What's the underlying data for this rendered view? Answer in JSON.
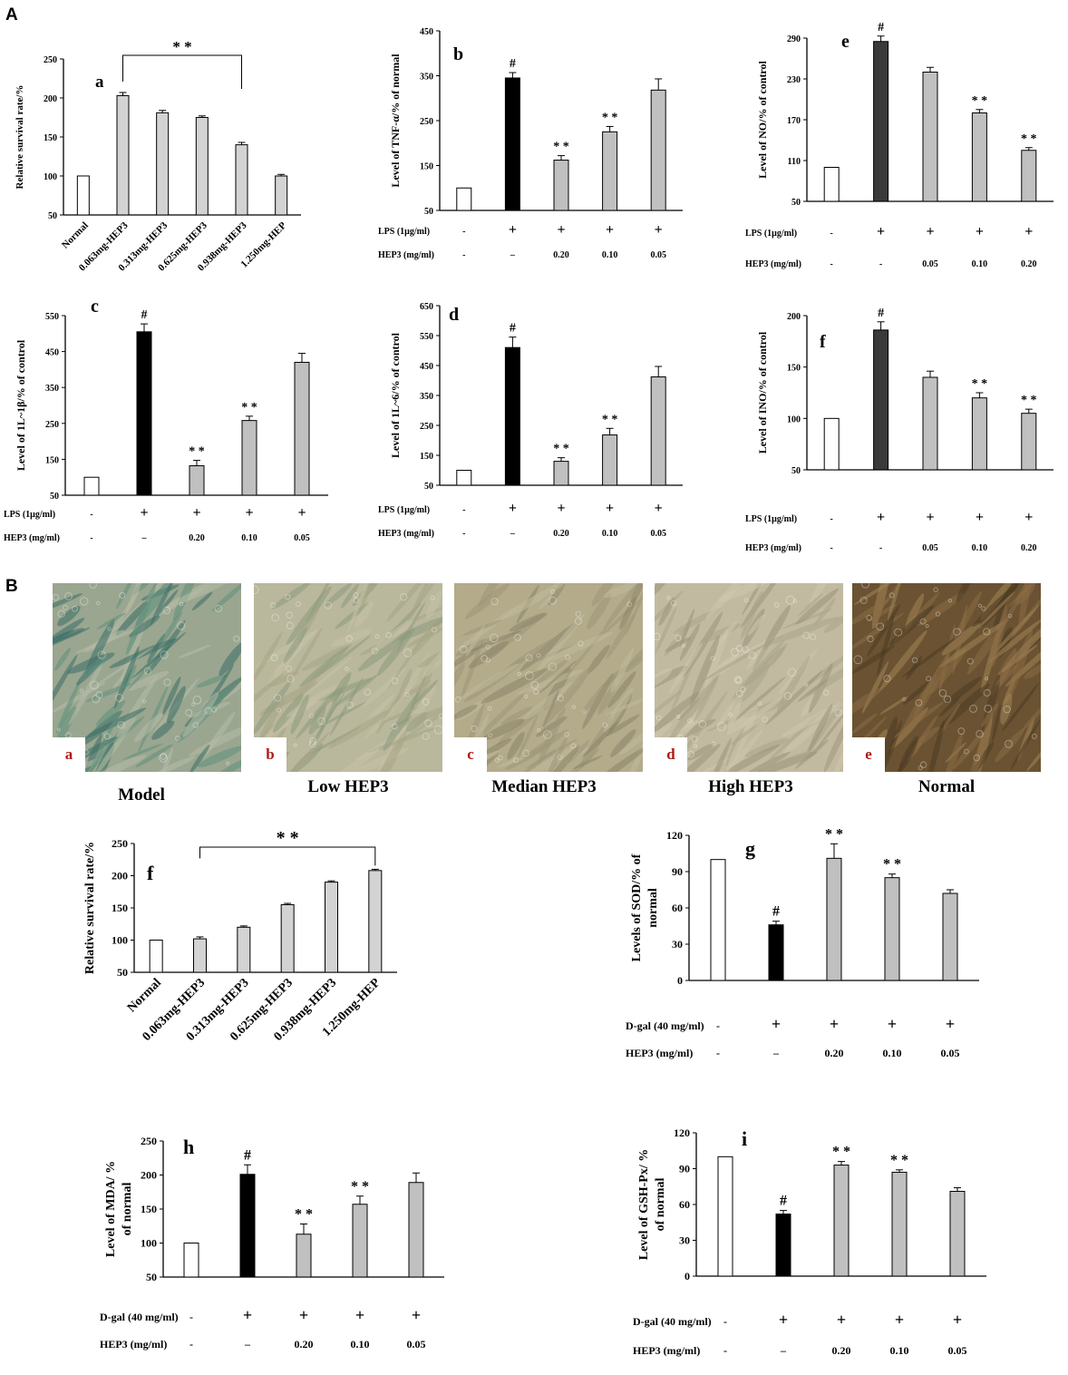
{
  "figure": {
    "section_a": "A",
    "section_b": "B"
  },
  "photos": [
    {
      "letter": "a",
      "caption": "Model",
      "colors": [
        "#9aa690",
        "#5f8f7c",
        "#3b6d66",
        "#b7bba6"
      ]
    },
    {
      "letter": "b",
      "caption": "Low  HEP3",
      "colors": [
        "#b9b79c",
        "#a7a585",
        "#8d9a7d",
        "#c6c2a8"
      ]
    },
    {
      "letter": "c",
      "caption": "Median  HEP3",
      "colors": [
        "#b3ab8a",
        "#9d9578",
        "#c0b99c",
        "#8a8468"
      ]
    },
    {
      "letter": "d",
      "caption": "High HEP3",
      "colors": [
        "#c2baa0",
        "#aaa48a",
        "#cfc7ad",
        "#9a937a"
      ]
    },
    {
      "letter": "e",
      "caption": "Normal",
      "colors": [
        "#6a5232",
        "#8b6c45",
        "#4b3a22",
        "#a28456"
      ]
    }
  ],
  "chart_data": [
    {
      "id": "a",
      "type": "bar",
      "panel_letter": "a",
      "ylabel": "Relative survival rate/%",
      "ylim": [
        50,
        250
      ],
      "yticks": [
        50,
        100,
        150,
        200,
        250
      ],
      "categories": [
        "Normal",
        "0.063mg-HEP3",
        "0.313mg-HEP3",
        "0.625mg-HEP3",
        "0.938mg-HEP3",
        "1.250mg-HEP"
      ],
      "values": [
        100,
        203,
        181,
        175,
        140,
        100
      ],
      "errors": [
        0,
        4,
        3,
        2,
        3,
        2
      ],
      "bar_colors": [
        "#ffffff",
        "#d3d3d3",
        "#d3d3d3",
        "#d3d3d3",
        "#d3d3d3",
        "#d3d3d3"
      ],
      "marks": [
        "",
        "",
        "",
        "",
        "",
        ""
      ],
      "bracket": {
        "from": 1,
        "to": 4,
        "label": "* *"
      },
      "rows": []
    },
    {
      "id": "b",
      "type": "bar",
      "panel_letter": "b",
      "ylabel": "Level of TNF-α/% of normal",
      "ylim": [
        50,
        450
      ],
      "yticks": [
        50,
        150,
        250,
        350,
        450
      ],
      "categories": [
        "",
        "",
        "",
        "",
        ""
      ],
      "values": [
        100,
        345,
        162,
        225,
        318
      ],
      "errors": [
        0,
        12,
        10,
        12,
        25
      ],
      "bar_colors": [
        "#ffffff",
        "#000000",
        "#c0c0c0",
        "#c0c0c0",
        "#c0c0c0"
      ],
      "marks": [
        "",
        "#",
        "* *",
        "* *",
        ""
      ],
      "rows": [
        {
          "label": "LPS (1μg/ml)",
          "values": [
            "-",
            "+",
            "+",
            "+",
            "+"
          ]
        },
        {
          "label": "HEP3 (mg/ml)",
          "values": [
            "-",
            "–",
            "0.20",
            "0.10",
            "0.05"
          ]
        }
      ]
    },
    {
      "id": "e",
      "type": "bar",
      "panel_letter": "e",
      "ylabel": "Level of NO/% of control",
      "ylim": [
        50,
        290
      ],
      "yticks": [
        50,
        110,
        170,
        230,
        290
      ],
      "categories": [
        "",
        "",
        "",
        "",
        ""
      ],
      "values": [
        100,
        285,
        240,
        180,
        125
      ],
      "errors": [
        0,
        8,
        7,
        5,
        4
      ],
      "bar_colors": [
        "#ffffff",
        "#3a3a3a",
        "#c0c0c0",
        "#c0c0c0",
        "#c0c0c0"
      ],
      "marks": [
        "",
        "#",
        "",
        "* *",
        "* *"
      ],
      "rows": [
        {
          "label": "LPS (1μg/ml)",
          "values": [
            "-",
            "+",
            "+",
            "+",
            "+"
          ]
        },
        {
          "label": "HEP3 (mg/ml)",
          "values": [
            "-",
            "-",
            "0.05",
            "0.10",
            "0.20"
          ]
        }
      ]
    },
    {
      "id": "c",
      "type": "bar",
      "panel_letter": "c",
      "ylabel": "Level of 1L~1β/% of control",
      "ylim": [
        50,
        550
      ],
      "yticks": [
        50,
        150,
        250,
        350,
        450,
        550
      ],
      "categories": [
        "",
        "",
        "",
        "",
        ""
      ],
      "values": [
        100,
        505,
        132,
        258,
        420
      ],
      "errors": [
        0,
        22,
        15,
        12,
        25
      ],
      "bar_colors": [
        "#ffffff",
        "#000000",
        "#c0c0c0",
        "#c0c0c0",
        "#c0c0c0"
      ],
      "marks": [
        "",
        "#",
        "* *",
        "* *",
        ""
      ],
      "rows": [
        {
          "label": "LPS (1μg/ml)",
          "values": [
            "-",
            "+",
            "+",
            "+",
            "+"
          ]
        },
        {
          "label": "HEP3 (mg/ml)",
          "values": [
            "-",
            "–",
            "0.20",
            "0.10",
            "0.05"
          ]
        }
      ]
    },
    {
      "id": "d",
      "type": "bar",
      "panel_letter": "d",
      "ylabel": "Level of 1L~6/% of control",
      "ylim": [
        50,
        650
      ],
      "yticks": [
        50,
        150,
        250,
        350,
        450,
        550,
        650
      ],
      "categories": [
        "",
        "",
        "",
        "",
        ""
      ],
      "values": [
        100,
        510,
        130,
        218,
        412
      ],
      "errors": [
        0,
        35,
        12,
        22,
        35
      ],
      "bar_colors": [
        "#ffffff",
        "#000000",
        "#c0c0c0",
        "#c0c0c0",
        "#c0c0c0"
      ],
      "marks": [
        "",
        "#",
        "* *",
        "* *",
        ""
      ],
      "rows": [
        {
          "label": "LPS (1μg/ml)",
          "values": [
            "-",
            "+",
            "+",
            "+",
            "+"
          ]
        },
        {
          "label": "HEP3 (mg/ml)",
          "values": [
            "-",
            "–",
            "0.20",
            "0.10",
            "0.05"
          ]
        }
      ]
    },
    {
      "id": "f1",
      "type": "bar",
      "panel_letter": "f",
      "ylabel": "Level of INO/% of control",
      "ylim": [
        50,
        200
      ],
      "yticks": [
        50,
        100,
        150,
        200
      ],
      "categories": [
        "",
        "",
        "",
        "",
        ""
      ],
      "values": [
        100,
        186,
        140,
        120,
        105
      ],
      "errors": [
        0,
        8,
        6,
        5,
        4
      ],
      "bar_colors": [
        "#ffffff",
        "#3a3a3a",
        "#c0c0c0",
        "#c0c0c0",
        "#c0c0c0"
      ],
      "marks": [
        "",
        "#",
        "",
        "* *",
        "* *"
      ],
      "rows": [
        {
          "label": "LPS (1μg/ml)",
          "values": [
            "-",
            "+",
            "+",
            "+",
            "+"
          ]
        },
        {
          "label": "HEP3 (mg/ml)",
          "values": [
            "-",
            "-",
            "0.05",
            "0.10",
            "0.20"
          ]
        }
      ]
    },
    {
      "id": "f2",
      "type": "bar",
      "panel_letter": "f",
      "ylabel": "Relative survival rate/%",
      "ylim": [
        50,
        250
      ],
      "yticks": [
        50,
        100,
        150,
        200,
        250
      ],
      "categories": [
        "Normal",
        "0.063mg-HEP3",
        "0.313mg-HEP3",
        "0.625mg-HEP3",
        "0.938mg-HEP3",
        "1.250mg-HEP"
      ],
      "values": [
        100,
        102,
        120,
        155,
        190,
        208
      ],
      "errors": [
        0,
        3,
        2,
        2,
        2,
        2
      ],
      "bar_colors": [
        "#ffffff",
        "#d3d3d3",
        "#d3d3d3",
        "#d3d3d3",
        "#d3d3d3",
        "#d3d3d3"
      ],
      "marks": [
        "",
        "",
        "",
        "",
        "",
        ""
      ],
      "bracket": {
        "from": 1,
        "to": 5,
        "label": "* *"
      },
      "rows": []
    },
    {
      "id": "g",
      "type": "bar",
      "panel_letter": "g",
      "ylabel": "Levels of SOD/% of normal",
      "ylim": [
        0,
        120
      ],
      "yticks": [
        0,
        30,
        60,
        90,
        120
      ],
      "categories": [
        "",
        "",
        "",
        "",
        ""
      ],
      "values": [
        100,
        46,
        101,
        85,
        72
      ],
      "errors": [
        0,
        3,
        12,
        3,
        3
      ],
      "bar_colors": [
        "#ffffff",
        "#000000",
        "#c0c0c0",
        "#c0c0c0",
        "#c0c0c0"
      ],
      "marks": [
        "",
        "#",
        "* *",
        "* *",
        ""
      ],
      "rows": [
        {
          "label": "D-gal (40 mg/ml)",
          "values": [
            "-",
            "+",
            "+",
            "+",
            "+"
          ]
        },
        {
          "label": "HEP3 (mg/ml)",
          "values": [
            "-",
            "–",
            "0.20",
            "0.10",
            "0.05"
          ]
        }
      ]
    },
    {
      "id": "h",
      "type": "bar",
      "panel_letter": "h",
      "ylabel": "Level of MDA/ % of normal",
      "ylim": [
        50,
        250
      ],
      "yticks": [
        50,
        100,
        150,
        200,
        250
      ],
      "categories": [
        "",
        "",
        "",
        "",
        ""
      ],
      "values": [
        100,
        201,
        113,
        157,
        189
      ],
      "errors": [
        0,
        14,
        15,
        12,
        14
      ],
      "bar_colors": [
        "#ffffff",
        "#000000",
        "#c0c0c0",
        "#c0c0c0",
        "#c0c0c0"
      ],
      "marks": [
        "",
        "#",
        "* *",
        "* *",
        ""
      ],
      "rows": [
        {
          "label": "D-gal (40 mg/ml)",
          "values": [
            "-",
            "+",
            "+",
            "+",
            "+"
          ]
        },
        {
          "label": "HEP3 (mg/ml)",
          "values": [
            "-",
            "–",
            "0.20",
            "0.10",
            "0.05"
          ]
        }
      ]
    },
    {
      "id": "i",
      "type": "bar",
      "panel_letter": "i",
      "ylabel": "Level of GSH-Px/ % of normal",
      "ylim": [
        0,
        120
      ],
      "yticks": [
        0,
        30,
        60,
        90,
        120
      ],
      "categories": [
        "",
        "",
        "",
        "",
        ""
      ],
      "values": [
        100,
        52,
        93,
        87,
        71
      ],
      "errors": [
        0,
        3,
        3,
        2,
        3
      ],
      "bar_colors": [
        "#ffffff",
        "#000000",
        "#c0c0c0",
        "#c0c0c0",
        "#c0c0c0"
      ],
      "marks": [
        "",
        "#",
        "* *",
        "* *",
        ""
      ],
      "rows": [
        {
          "label": "D-gal (40 mg/ml)",
          "values": [
            "-",
            "+",
            "+",
            "+",
            "+"
          ]
        },
        {
          "label": "HEP3 (mg/ml)",
          "values": [
            "-",
            "–",
            "0.20",
            "0.10",
            "0.05"
          ]
        }
      ]
    }
  ]
}
